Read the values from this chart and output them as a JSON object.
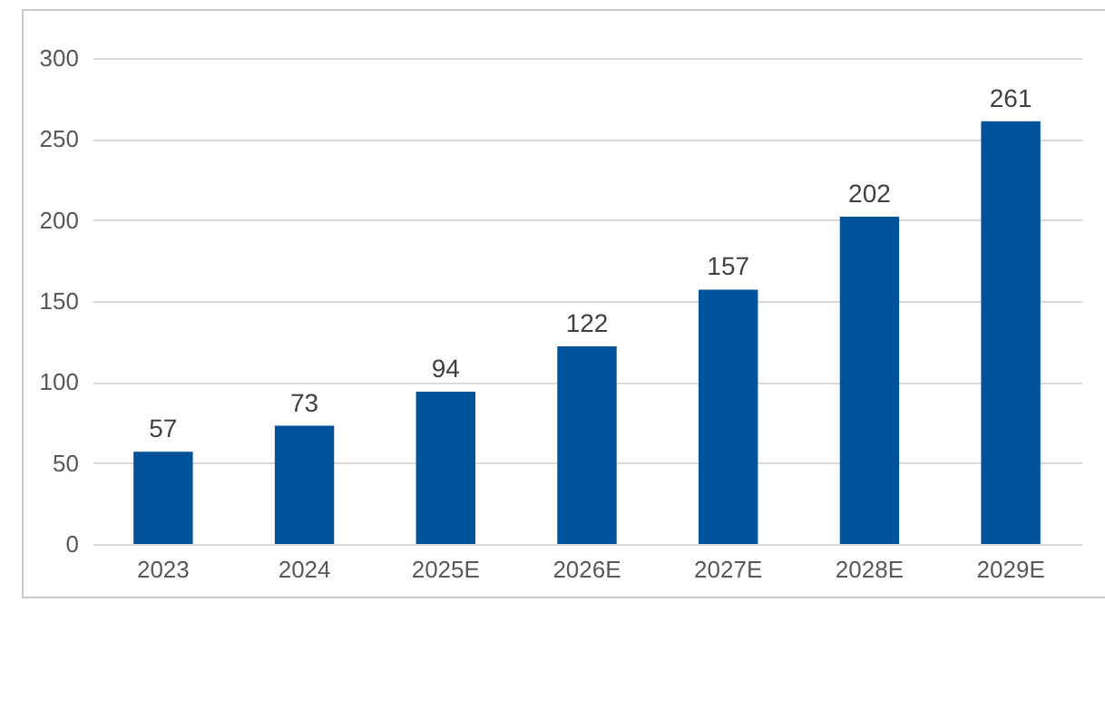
{
  "chart_data": {
    "type": "bar",
    "categories": [
      "2023",
      "2024",
      "2025E",
      "2026E",
      "2027E",
      "2028E",
      "2029E"
    ],
    "values": [
      57,
      73,
      94,
      122,
      157,
      202,
      261
    ],
    "color": "#00529b",
    "ylim": [
      0,
      300
    ],
    "yticks": [
      0,
      50,
      100,
      150,
      200,
      250,
      300
    ],
    "grid": "y",
    "data_labels": true
  }
}
